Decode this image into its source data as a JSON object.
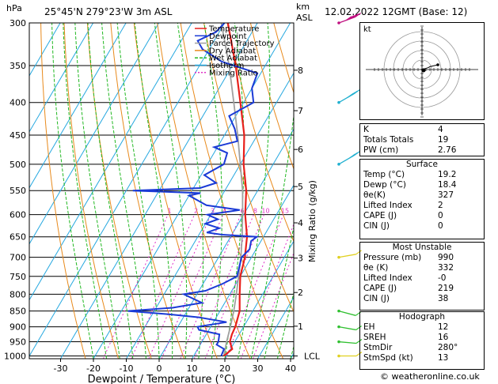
{
  "header": {
    "location": "25°45'N 279°23'W 3m ASL",
    "datetime": "12.02.2022 12GMT (Base: 12)",
    "units_p": "hPa",
    "units_km": "km",
    "units_asl": "ASL"
  },
  "footer": {
    "credit": "© weatheronline.co.uk"
  },
  "colors": {
    "temperature": "#e8201c",
    "dewpoint": "#1a3ad6",
    "parcel": "#a0a0a0",
    "dry_adiabat": "#e88a1c",
    "wet_adiabat": "#22b822",
    "isotherm": "#26a8e0",
    "mixing_ratio": "#e030c8"
  },
  "chart_data": {
    "type": "line",
    "title": "Skew-T log-P diagram",
    "xlabel": "Dewpoint / Temperature (°C)",
    "ylabel": "Mixing Ratio (g/kg)",
    "pressure_ticks": [
      "300",
      "350",
      "400",
      "450",
      "500",
      "550",
      "600",
      "650",
      "700",
      "750",
      "800",
      "850",
      "900",
      "950",
      "1000"
    ],
    "pressure_values": [
      300,
      350,
      400,
      450,
      500,
      550,
      600,
      650,
      700,
      750,
      800,
      850,
      900,
      950,
      1000
    ],
    "temp_ticks": [
      "-30",
      "-20",
      "-10",
      "0",
      "10",
      "20",
      "30",
      "40"
    ],
    "temp_values": [
      -30,
      -20,
      -10,
      0,
      10,
      20,
      30,
      40
    ],
    "xlim": [
      -38,
      40
    ],
    "ylim": [
      1010,
      300
    ],
    "km_ticks": [
      {
        "p": 1000,
        "label": "LCL"
      },
      {
        "p": 898,
        "label": "1"
      },
      {
        "p": 795,
        "label": "2"
      },
      {
        "p": 702,
        "label": "3"
      },
      {
        "p": 618,
        "label": "4"
      },
      {
        "p": 542,
        "label": "5"
      },
      {
        "p": 474,
        "label": "6"
      },
      {
        "p": 412,
        "label": "7"
      },
      {
        "p": 356,
        "label": "8"
      }
    ],
    "mixing_ratio_labels": [
      "1",
      "2",
      "3",
      "4",
      "6",
      "8",
      "10",
      "15",
      "20",
      "25"
    ],
    "mixing_ratio_values": [
      1,
      2,
      3,
      4,
      6,
      8,
      10,
      15,
      20,
      25
    ],
    "legend": [
      "Temperature",
      "Dewpoint",
      "Parcel Trajectory",
      "Dry Adiabat",
      "Wet Adiabat",
      "Isotherm",
      "Mixing Ratio"
    ],
    "legend_position": "top-left",
    "series": [
      {
        "name": "Temperature",
        "p": [
          1000,
          975,
          950,
          925,
          900,
          850,
          800,
          750,
          700,
          650,
          600,
          550,
          500,
          450,
          400,
          350,
          300
        ],
        "t": [
          19.2,
          20.5,
          18.5,
          17.8,
          17.5,
          16,
          13,
          10,
          8,
          5,
          0.5,
          -3.5,
          -9,
          -14,
          -21,
          -29,
          -39
        ]
      },
      {
        "name": "Dewpoint",
        "p": [
          1000,
          975,
          960,
          950,
          925,
          910,
          900,
          885,
          870,
          860,
          850,
          840,
          825,
          800,
          790,
          770,
          750,
          700,
          680,
          660,
          650,
          645,
          640,
          630,
          620,
          610,
          600,
          590,
          580,
          560,
          555,
          550,
          545,
          535,
          520,
          500,
          480,
          470,
          460,
          440,
          420,
          400,
          380,
          360,
          345,
          330,
          320,
          310,
          300
        ],
        "t": [
          18.4,
          18,
          15,
          15,
          14,
          7,
          6,
          14,
          5,
          -5,
          -18,
          -5,
          3,
          -4,
          2,
          6,
          9,
          7,
          8,
          7,
          8,
          -3,
          -8,
          -5,
          -10,
          -7,
          -11,
          -2,
          -13,
          -20,
          -17,
          -38,
          -18,
          -14,
          -19,
          -15,
          -16,
          -21,
          -15,
          -18,
          -22,
          -17,
          -20,
          -21,
          -34,
          -42,
          -45,
          -41,
          -40
        ]
      },
      {
        "name": "Parcel Trajectory",
        "p": [
          1000,
          950,
          900,
          850,
          800,
          750,
          700,
          650,
          600,
          550,
          500,
          450,
          400,
          350,
          300
        ],
        "t": [
          19.2,
          17.5,
          16,
          14.2,
          12,
          9.5,
          6.8,
          3.5,
          -0.3,
          -4.6,
          -10,
          -16,
          -23,
          -31,
          -41
        ]
      }
    ],
    "wind_barbs": [
      {
        "p": 1000,
        "dir": 270,
        "speed": 5
      },
      {
        "p": 950,
        "dir": 275,
        "speed": 10
      },
      {
        "p": 900,
        "dir": 280,
        "speed": 10
      },
      {
        "p": 850,
        "dir": 285,
        "speed": 10
      },
      {
        "p": 700,
        "dir": 260,
        "speed": 10
      },
      {
        "p": 500,
        "dir": 240,
        "speed": 30
      },
      {
        "p": 400,
        "dir": 240,
        "speed": 35
      },
      {
        "p": 300,
        "dir": 250,
        "speed": 60
      }
    ]
  },
  "hodograph": {
    "label": "kt",
    "points": [
      [
        0,
        0
      ],
      [
        -1,
        -1
      ],
      [
        2,
        1
      ],
      [
        4,
        2
      ],
      [
        8,
        4
      ],
      [
        10,
        6
      ],
      [
        20,
        10
      ]
    ]
  },
  "indices": {
    "rows": [
      {
        "label": "K",
        "value": "4"
      },
      {
        "label": "Totals Totals",
        "value": "19"
      },
      {
        "label": "PW (cm)",
        "value": "2.76"
      }
    ]
  },
  "surface": {
    "title": "Surface",
    "rows": [
      {
        "label": "Temp (°C)",
        "value": "19.2"
      },
      {
        "label": "Dewp (°C)",
        "value": "18.4"
      },
      {
        "label": "θe(K)",
        "value": "327"
      },
      {
        "label": "Lifted Index",
        "value": "2"
      },
      {
        "label": "CAPE (J)",
        "value": "0"
      },
      {
        "label": "CIN (J)",
        "value": "0"
      }
    ]
  },
  "most_unstable": {
    "title": "Most Unstable",
    "rows": [
      {
        "label": "Pressure (mb)",
        "value": "990"
      },
      {
        "label": "θe (K)",
        "value": "332"
      },
      {
        "label": "Lifted Index",
        "value": "-0"
      },
      {
        "label": "CAPE (J)",
        "value": "219"
      },
      {
        "label": "CIN (J)",
        "value": "38"
      }
    ]
  },
  "hodo_params": {
    "title": "Hodograph",
    "rows": [
      {
        "label": "EH",
        "value": "12"
      },
      {
        "label": "SREH",
        "value": "16"
      },
      {
        "label": "StmDir",
        "value": "280°"
      },
      {
        "label": "StmSpd (kt)",
        "value": "13"
      }
    ]
  }
}
